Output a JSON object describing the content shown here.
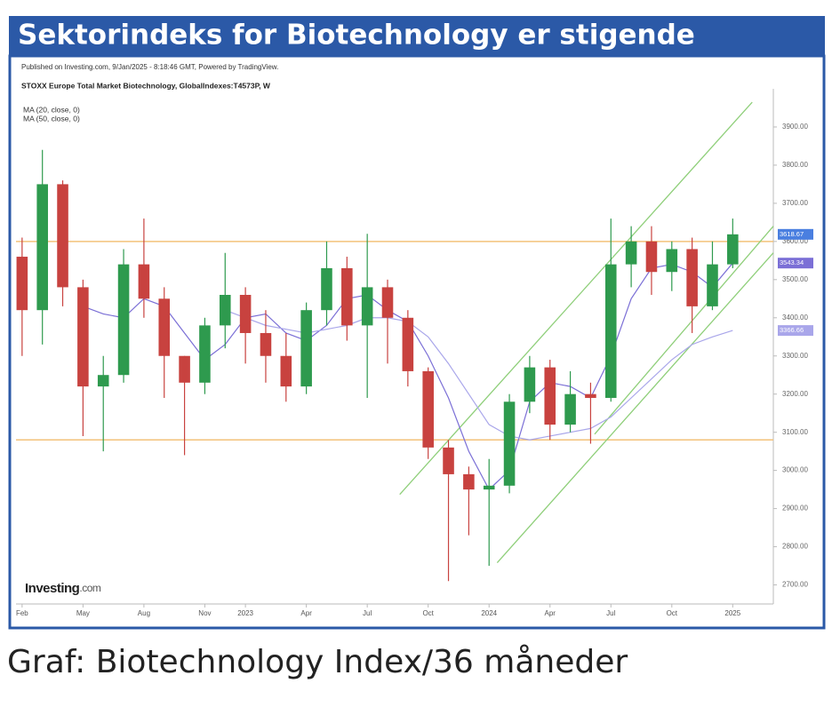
{
  "header": {
    "title": "Sektorindeks for Biotechnology er stigende"
  },
  "caption": "Graf: Biotechnology Index/36 måneder",
  "chart_data": {
    "type": "candlestick",
    "source_note": "Published on Investing.com, 9/Jan/2025 - 8:18:46 GMT, Powered by TradingView.",
    "title": "STOXX Europe Total Market Biotechnology, GlobalIndexes:T4573P, W",
    "logo": {
      "brand": "Investing",
      "suffix": ".com"
    },
    "xlim": [
      -0.3,
      37
    ],
    "xticks": [
      {
        "value": 0,
        "label": "Feb"
      },
      {
        "value": 3,
        "label": "May"
      },
      {
        "value": 6,
        "label": "Aug"
      },
      {
        "value": 9,
        "label": "Nov"
      },
      {
        "value": 11,
        "label": "2023"
      },
      {
        "value": 14,
        "label": "Apr"
      },
      {
        "value": 17,
        "label": "Jul"
      },
      {
        "value": 20,
        "label": "Oct"
      },
      {
        "value": 23,
        "label": "2024"
      },
      {
        "value": 26,
        "label": "Apr"
      },
      {
        "value": 29,
        "label": "Jul"
      },
      {
        "value": 32,
        "label": "Oct"
      },
      {
        "value": 35,
        "label": "2025"
      }
    ],
    "ylim": [
      2650,
      4000
    ],
    "yticks": [
      {
        "value": 2700,
        "label": "2700.00"
      },
      {
        "value": 2800,
        "label": "2800.00"
      },
      {
        "value": 2900,
        "label": "2900.00"
      },
      {
        "value": 3000,
        "label": "3000.00"
      },
      {
        "value": 3100,
        "label": "3100.00"
      },
      {
        "value": 3200,
        "label": "3200.00"
      },
      {
        "value": 3300,
        "label": "3300.00"
      },
      {
        "value": 3400,
        "label": "3400.00"
      },
      {
        "value": 3500,
        "label": "3500.00"
      },
      {
        "value": 3600,
        "label": "3600.00"
      },
      {
        "value": 3700,
        "label": "3700.00"
      },
      {
        "value": 3800,
        "label": "3800.00"
      },
      {
        "value": 3900,
        "label": "3900.00"
      }
    ],
    "up_color": "#2e9a4e",
    "down_color": "#c8423f",
    "open": [
      3560,
      3420,
      3750,
      3480,
      3220,
      3250,
      3540,
      3450,
      3300,
      3230,
      3380,
      3460,
      3360,
      3300,
      3220,
      3420,
      3530,
      3380,
      3480,
      3400,
      3260,
      3060,
      2990,
      2950,
      2960,
      3180,
      3270,
      3120,
      3200,
      3190,
      3540,
      3600,
      3520,
      3580,
      3430,
      3540
    ],
    "high": [
      3610,
      3840,
      3760,
      3500,
      3300,
      3580,
      3660,
      3480,
      3300,
      3400,
      3570,
      3480,
      3420,
      3360,
      3440,
      3600,
      3560,
      3620,
      3500,
      3420,
      3270,
      3080,
      3010,
      3030,
      3200,
      3300,
      3290,
      3260,
      3230,
      3660,
      3640,
      3640,
      3600,
      3610,
      3600,
      3660
    ],
    "low": [
      3300,
      3330,
      3430,
      3090,
      3050,
      3230,
      3400,
      3190,
      3040,
      3200,
      3320,
      3280,
      3230,
      3180,
      3200,
      3380,
      3340,
      3190,
      3280,
      3220,
      3030,
      2710,
      2830,
      2750,
      2940,
      3150,
      3080,
      3100,
      3070,
      3180,
      3480,
      3460,
      3470,
      3360,
      3420,
      3530
    ],
    "close": [
      3420,
      3750,
      3480,
      3220,
      3250,
      3540,
      3450,
      3300,
      3230,
      3380,
      3460,
      3360,
      3300,
      3220,
      3420,
      3530,
      3380,
      3480,
      3400,
      3260,
      3060,
      2990,
      2950,
      2960,
      3180,
      3270,
      3120,
      3200,
      3190,
      3540,
      3600,
      3520,
      3580,
      3430,
      3540,
      3618.67
    ],
    "close_last_label": "3618.67",
    "series": [
      {
        "name": "MA (20, close, 0)",
        "color": "#7b6fd6",
        "last_label": "3543.34",
        "values": [
          null,
          null,
          null,
          3430,
          3410,
          3400,
          3450,
          3430,
          3360,
          3290,
          3330,
          3400,
          3410,
          3360,
          3340,
          3380,
          3450,
          3460,
          3420,
          3390,
          3300,
          3190,
          3050,
          2950,
          3000,
          3180,
          3230,
          3220,
          3190,
          3300,
          3450,
          3530,
          3540,
          3520,
          3480,
          3543.34
        ]
      },
      {
        "name": "MA (50, close, 0)",
        "color": "#a9a6ea",
        "last_label": "3366.66",
        "values": [
          null,
          null,
          null,
          null,
          null,
          null,
          null,
          null,
          null,
          null,
          3420,
          3400,
          3380,
          3370,
          3360,
          3370,
          3380,
          3400,
          3400,
          3390,
          3350,
          3280,
          3200,
          3120,
          3090,
          3080,
          3090,
          3100,
          3110,
          3140,
          3190,
          3240,
          3290,
          3330,
          3350,
          3366.66
        ]
      }
    ],
    "levels": [
      3600,
      3080
    ],
    "level_color": "#f3c27a",
    "trend_lines": [
      [
        18.6,
        2937,
        35.96,
        3965
      ],
      [
        28.2,
        3095,
        37,
        3640
      ],
      [
        23.4,
        2758,
        37,
        3570
      ]
    ],
    "trend_color": "#8fcf7a"
  }
}
